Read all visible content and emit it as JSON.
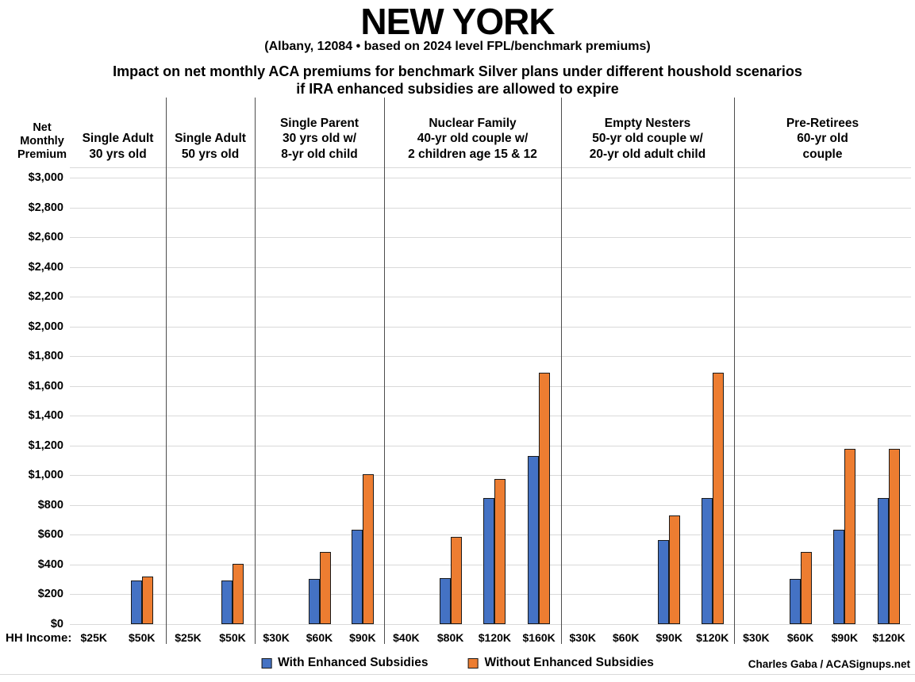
{
  "header": {
    "title": "NEW YORK",
    "subtitle": "(Albany, 12084 • based on 2024 level FPL/benchmark premiums)",
    "heading_line1": "Impact on net monthly ACA premiums for benchmark Silver plans under different houshold scenarios",
    "heading_line2": "if IRA enhanced subsidies are allowed to expire"
  },
  "axis": {
    "y_title": "Net\nMonthly\nPremium",
    "hh_income_label": "HH Income:"
  },
  "legend": {
    "with_label": "With Enhanced Subsidies",
    "without_label": "Without Enhanced Subsidies"
  },
  "credit": "Charles Gaba / ACASignups.net",
  "colors": {
    "with_subsidies": "#4472C4",
    "without_subsidies": "#ED7D31",
    "bar_border": "#1A1A1A",
    "gridline": "#D9D9D9",
    "separator": "#4D4D4D",
    "text": "#000000"
  },
  "chart_data": {
    "type": "bar",
    "title": "Impact on net monthly ACA premiums for benchmark Silver plans under different houshold scenarios if IRA enhanced subsidies are allowed to expire",
    "ylabel": "Net Monthly Premium",
    "xlabel": "HH Income",
    "ylim": [
      0,
      3000
    ],
    "ytick_step": 200,
    "ytick_prefix": "$",
    "grid": true,
    "legend_position": "bottom",
    "series_names": [
      "With Enhanced Subsidies",
      "Without Enhanced Subsidies"
    ],
    "groups": [
      {
        "label_lines": [
          "Single Adult",
          "30 yrs old"
        ],
        "incomes": [
          "$25K",
          "$50K"
        ],
        "with_subsidies": [
          0,
          295
        ],
        "without_subsidies": [
          0,
          320
        ]
      },
      {
        "label_lines": [
          "Single Adult",
          "50 yrs old"
        ],
        "incomes": [
          "$25K",
          "$50K"
        ],
        "with_subsidies": [
          0,
          295
        ],
        "without_subsidies": [
          0,
          405
        ]
      },
      {
        "label_lines": [
          "Single Parent",
          "30 yrs old w/",
          "8-yr old child"
        ],
        "incomes": [
          "$30K",
          "$60K",
          "$90K"
        ],
        "with_subsidies": [
          0,
          305,
          635
        ],
        "without_subsidies": [
          0,
          485,
          1005
        ]
      },
      {
        "label_lines": [
          "Nuclear Family",
          "40-yr old couple w/",
          "2 children age 15 & 12"
        ],
        "incomes": [
          "$40K",
          "$80K",
          "$120K",
          "$160K"
        ],
        "with_subsidies": [
          0,
          310,
          845,
          1130
        ],
        "without_subsidies": [
          0,
          585,
          975,
          1690
        ]
      },
      {
        "label_lines": [
          "Empty Nesters",
          "50-yr old couple w/",
          "20-yr old adult child"
        ],
        "incomes": [
          "$30K",
          "$60K",
          "$90K",
          "$120K"
        ],
        "with_subsidies": [
          0,
          0,
          565,
          845
        ],
        "without_subsidies": [
          0,
          0,
          730,
          1690
        ]
      },
      {
        "label_lines": [
          "Pre-Retirees",
          "60-yr old couple"
        ],
        "incomes": [
          "$30K",
          "$60K",
          "$90K",
          "$120K"
        ],
        "with_subsidies": [
          0,
          305,
          635,
          845
        ],
        "without_subsidies": [
          0,
          485,
          1180,
          1180
        ]
      }
    ]
  }
}
